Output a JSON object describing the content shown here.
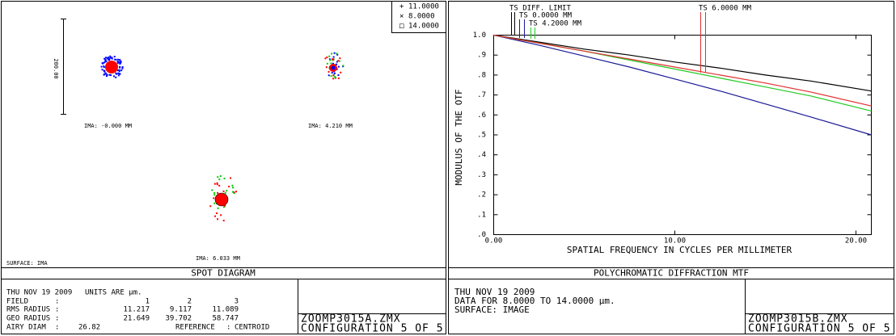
{
  "spot_diagram": {
    "legend": [
      {
        "symbol": "+",
        "label": "11.0000",
        "color": "#0000ff"
      },
      {
        "symbol": "×",
        "label": "8.0000",
        "color": "#00cc00"
      },
      {
        "symbol": "□",
        "label": "14.0000",
        "color": "#ff0000"
      }
    ],
    "scale_label": "200.00",
    "field_labels": [
      "IMA: -0.000 MM",
      "IMA: 4.210 MM",
      "IMA: 6.033 MM"
    ],
    "surface": "SURFACE: IMA",
    "title": "SPOT DIAGRAM",
    "info": {
      "date": "THU NOV 19 2009",
      "units": "UNITS ARE µm.",
      "separator": ":",
      "rows": [
        {
          "label": "FIELD",
          "values": [
            1,
            2,
            3
          ]
        },
        {
          "label": "RMS RADIUS",
          "values": [
            11.217,
            9.117,
            11.089
          ]
        },
        {
          "label": "GEO RADIUS",
          "values": [
            21.649,
            39.702,
            58.747
          ]
        }
      ],
      "airy": {
        "label": "AIRY DIAM",
        "value": 26.82
      },
      "reference": {
        "label": "REFERENCE",
        "value": "CENTROID"
      }
    },
    "file": "ZOOMP3015A.ZMX",
    "config": "CONFIGURATION 5 OF 5"
  },
  "chart_data": {
    "type": "line",
    "title": "POLYCHROMATIC DIFFRACTION MTF",
    "x_label": "SPATIAL FREQUENCY IN CYCLES PER MILLIMETER",
    "y_label": "MODULUS OF THE OTF",
    "x": [
      0,
      2.5,
      5,
      7.5,
      10,
      12.5,
      15,
      17.5,
      20.85
    ],
    "series": [
      {
        "name": "TS DIFF. LIMIT",
        "color": "#000000",
        "values": [
          1,
          0.965,
          0.93,
          0.9,
          0.865,
          0.835,
          0.8,
          0.77,
          0.72
        ]
      },
      {
        "name": "TS 0.0000 MM",
        "color": "#1a1a96",
        "values": [
          1,
          0.95,
          0.895,
          0.84,
          0.78,
          0.72,
          0.655,
          0.59,
          0.5
        ]
      },
      {
        "name": "TS 4.2000 MM",
        "color": "#22cc22",
        "values": [
          1,
          0.96,
          0.92,
          0.875,
          0.83,
          0.785,
          0.74,
          0.695,
          0.62
        ]
      },
      {
        "name": "TS 6.0000 MM",
        "color": "#e03030",
        "values": [
          1,
          0.96,
          0.92,
          0.88,
          0.84,
          0.8,
          0.76,
          0.715,
          0.645
        ]
      }
    ],
    "xlim": [
      0,
      20.85
    ],
    "ylim": [
      0,
      1
    ],
    "xticks": [
      {
        "value": 0,
        "label": "0.00"
      },
      {
        "value": 10,
        "label": "10.00"
      },
      {
        "value": 20,
        "label": "20.00"
      }
    ],
    "yticks": [
      {
        "value": 1,
        "label": "1.0"
      },
      {
        "value": 0.9,
        "label": ".9"
      },
      {
        "value": 0.8,
        "label": ".8"
      },
      {
        "value": 0.7,
        "label": ".7"
      },
      {
        "value": 0.6,
        "label": ".6"
      },
      {
        "value": 0.5,
        "label": ".5"
      },
      {
        "value": 0.4,
        "label": ".4"
      },
      {
        "value": 0.3,
        "label": ".3"
      },
      {
        "value": 0.2,
        "label": ".2"
      },
      {
        "value": 0.1,
        "label": ".1"
      },
      {
        "value": 0,
        "label": ".0"
      }
    ],
    "info": {
      "date": "THU NOV 19 2009",
      "data_range": "DATA FOR 8.0000 TO 14.0000 µm.",
      "surface": "SURFACE: IMAGE"
    },
    "file": "ZOOMP3015B.ZMX",
    "config": "CONFIGURATION 5 OF 5"
  }
}
